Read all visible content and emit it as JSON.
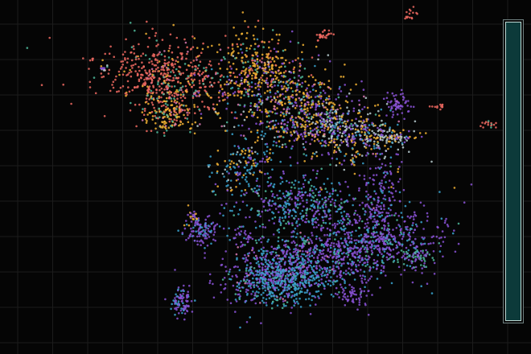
{
  "view": {
    "background": "#050505",
    "grid_color": "#1c1c1c",
    "grid_lines": "on",
    "point_opacity": 0.85
  },
  "palette": {
    "coral": "#f06a62",
    "amber": "#f2b134",
    "teal": "#4fb89a",
    "violet": "#8a52d6",
    "sky": "#3aa3cf",
    "pink": "#d97ab3",
    "mist": "#b9cdd0"
  },
  "side_panel": {
    "fill_color": "#0c3a3a",
    "border_color": "#bcd7d2",
    "fill_fraction": 1.0
  }
}
